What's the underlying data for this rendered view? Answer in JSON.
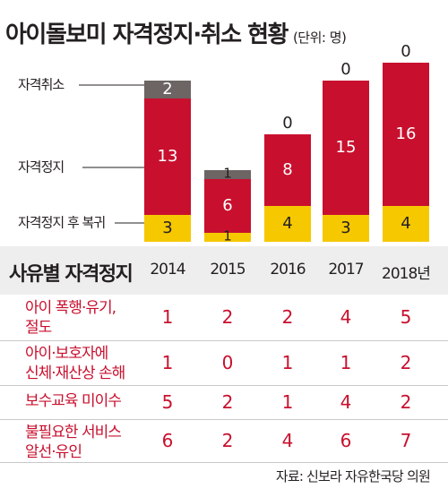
{
  "title": "아이돌보미 자격정지·취소 현황",
  "unit": "(단위: 명)",
  "source": "자료: 신보라 자유한국당 의원",
  "colors": {
    "취소": "#6d6464",
    "정지": "#c8102e",
    "복귀": "#f5c800"
  },
  "chart_data": {
    "type": "bar",
    "stacked": true,
    "categories": [
      "2014",
      "2015",
      "2016",
      "2017",
      "2018년"
    ],
    "series": [
      {
        "name": "자격정지 후 복귀",
        "values": [
          3,
          1,
          4,
          3,
          4
        ]
      },
      {
        "name": "자격정지",
        "values": [
          13,
          6,
          8,
          15,
          16
        ]
      },
      {
        "name": "자격취소",
        "values": [
          2,
          1,
          0,
          0,
          0
        ]
      }
    ],
    "legend_placement": "left"
  },
  "table": {
    "header": "사유별 자격정지",
    "years": [
      "2014",
      "2015",
      "2016",
      "2017",
      "2018년"
    ],
    "rows": [
      {
        "label": "아이 폭행·유기,\n절도",
        "values": [
          1,
          2,
          2,
          4,
          5
        ]
      },
      {
        "label": "아이·보호자에\n신체·재산상 손해",
        "values": [
          1,
          0,
          1,
          1,
          2
        ]
      },
      {
        "label": "보수교육 미이수",
        "values": [
          5,
          2,
          1,
          4,
          2
        ]
      },
      {
        "label": "불필요한 서비스\n알선·유인",
        "values": [
          6,
          2,
          4,
          6,
          7
        ]
      }
    ]
  }
}
